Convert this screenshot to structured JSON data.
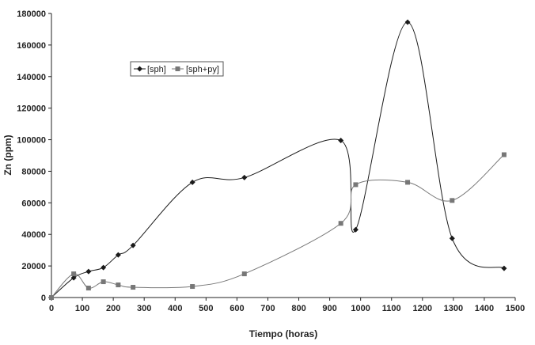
{
  "chart_data": {
    "type": "line",
    "title": "",
    "xlabel": "Tiempo (horas)",
    "ylabel": "Zn (ppm)",
    "xlim": [
      0,
      1500
    ],
    "ylim": [
      0,
      180000
    ],
    "x_ticks": [
      "0",
      "100",
      "200",
      "300",
      "400",
      "500",
      "600",
      "700",
      "800",
      "900",
      "1000",
      "1100",
      "1200",
      "1300",
      "1400",
      "1500"
    ],
    "y_ticks": [
      "0",
      "20000",
      "40000",
      "60000",
      "80000",
      "100000",
      "120000",
      "140000",
      "160000",
      "180000"
    ],
    "grid": false,
    "legend_position": "top-left",
    "series": [
      {
        "name": "[sph]",
        "marker": "diamond",
        "color": "#1a1a1a",
        "points": [
          [
            0,
            0
          ],
          [
            72,
            12500
          ],
          [
            120,
            16500
          ],
          [
            168,
            19000
          ],
          [
            216,
            27000
          ],
          [
            264,
            33000
          ],
          [
            456,
            73000
          ],
          [
            624,
            76000
          ],
          [
            936,
            99500
          ],
          [
            984,
            43000
          ],
          [
            1152,
            174500
          ],
          [
            1296,
            37500
          ],
          [
            1464,
            18500
          ]
        ]
      },
      {
        "name": "[sph+py]",
        "marker": "square",
        "color": "#777777",
        "points": [
          [
            0,
            0
          ],
          [
            72,
            15000
          ],
          [
            120,
            6000
          ],
          [
            168,
            10000
          ],
          [
            216,
            8000
          ],
          [
            264,
            6500
          ],
          [
            456,
            7000
          ],
          [
            624,
            15000
          ],
          [
            936,
            47000
          ],
          [
            984,
            71500
          ],
          [
            1152,
            73000
          ],
          [
            1296,
            61500
          ],
          [
            1464,
            90500
          ]
        ]
      }
    ]
  }
}
